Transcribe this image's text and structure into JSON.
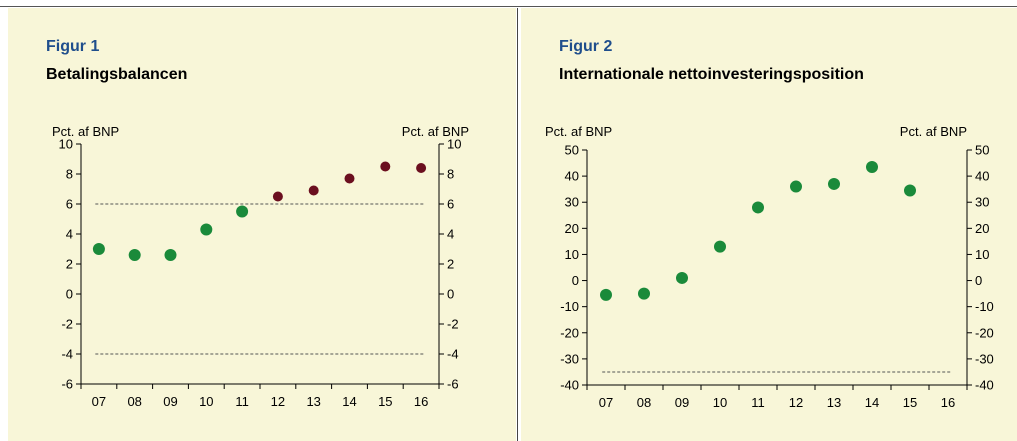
{
  "figures": [
    {
      "label": "Figur 1",
      "title": "Betalingsbalancen",
      "left_axis_label": "Pct. af BNP",
      "right_axis_label": "Pct. af BNP"
    },
    {
      "label": "Figur 2",
      "title": "Internationale nettoinvesteringsposition",
      "left_axis_label": "Pct. af BNP",
      "right_axis_label": "Pct. af BNP"
    }
  ],
  "chart_data": [
    {
      "type": "scatter",
      "title": "Betalingsbalancen",
      "ylabel": "Pct. af BNP",
      "y2label": "Pct. af BNP",
      "ylim": [
        -6,
        10
      ],
      "yticks": [
        10,
        8,
        6,
        4,
        2,
        0,
        -2,
        -4,
        -6
      ],
      "grid": false,
      "categories": [
        "07",
        "08",
        "09",
        "10",
        "11",
        "12",
        "13",
        "14",
        "15",
        "16"
      ],
      "series": [
        {
          "color": "#1a8a3a",
          "points": [
            [
              "07",
              3.0
            ],
            [
              "08",
              2.6
            ],
            [
              "09",
              2.6
            ],
            [
              "10",
              4.3
            ],
            [
              "11",
              5.5
            ]
          ]
        },
        {
          "color": "#6b0f1f",
          "points": [
            [
              "12",
              6.5
            ],
            [
              "13",
              6.9
            ],
            [
              "14",
              7.7
            ],
            [
              "15",
              8.5
            ],
            [
              "16",
              8.4
            ]
          ]
        }
      ],
      "reference_lines": [
        6,
        -4
      ]
    },
    {
      "type": "scatter",
      "title": "Internationale nettoinvesteringsposition",
      "ylabel": "Pct. af BNP",
      "y2label": "Pct. af BNP",
      "ylim": [
        -40,
        50
      ],
      "yticks": [
        50,
        40,
        30,
        20,
        10,
        0,
        -10,
        -20,
        -30,
        -40
      ],
      "grid": false,
      "categories": [
        "07",
        "08",
        "09",
        "10",
        "11",
        "12",
        "13",
        "14",
        "15",
        "16"
      ],
      "series": [
        {
          "color": "#1a8a3a",
          "points": [
            [
              "07",
              -5.5
            ],
            [
              "08",
              -5
            ],
            [
              "09",
              1
            ],
            [
              "10",
              13
            ],
            [
              "11",
              28
            ],
            [
              "12",
              36
            ],
            [
              "13",
              37
            ],
            [
              "14",
              43.5
            ],
            [
              "15",
              34.5
            ]
          ]
        }
      ],
      "reference_lines": [
        -35
      ]
    }
  ]
}
